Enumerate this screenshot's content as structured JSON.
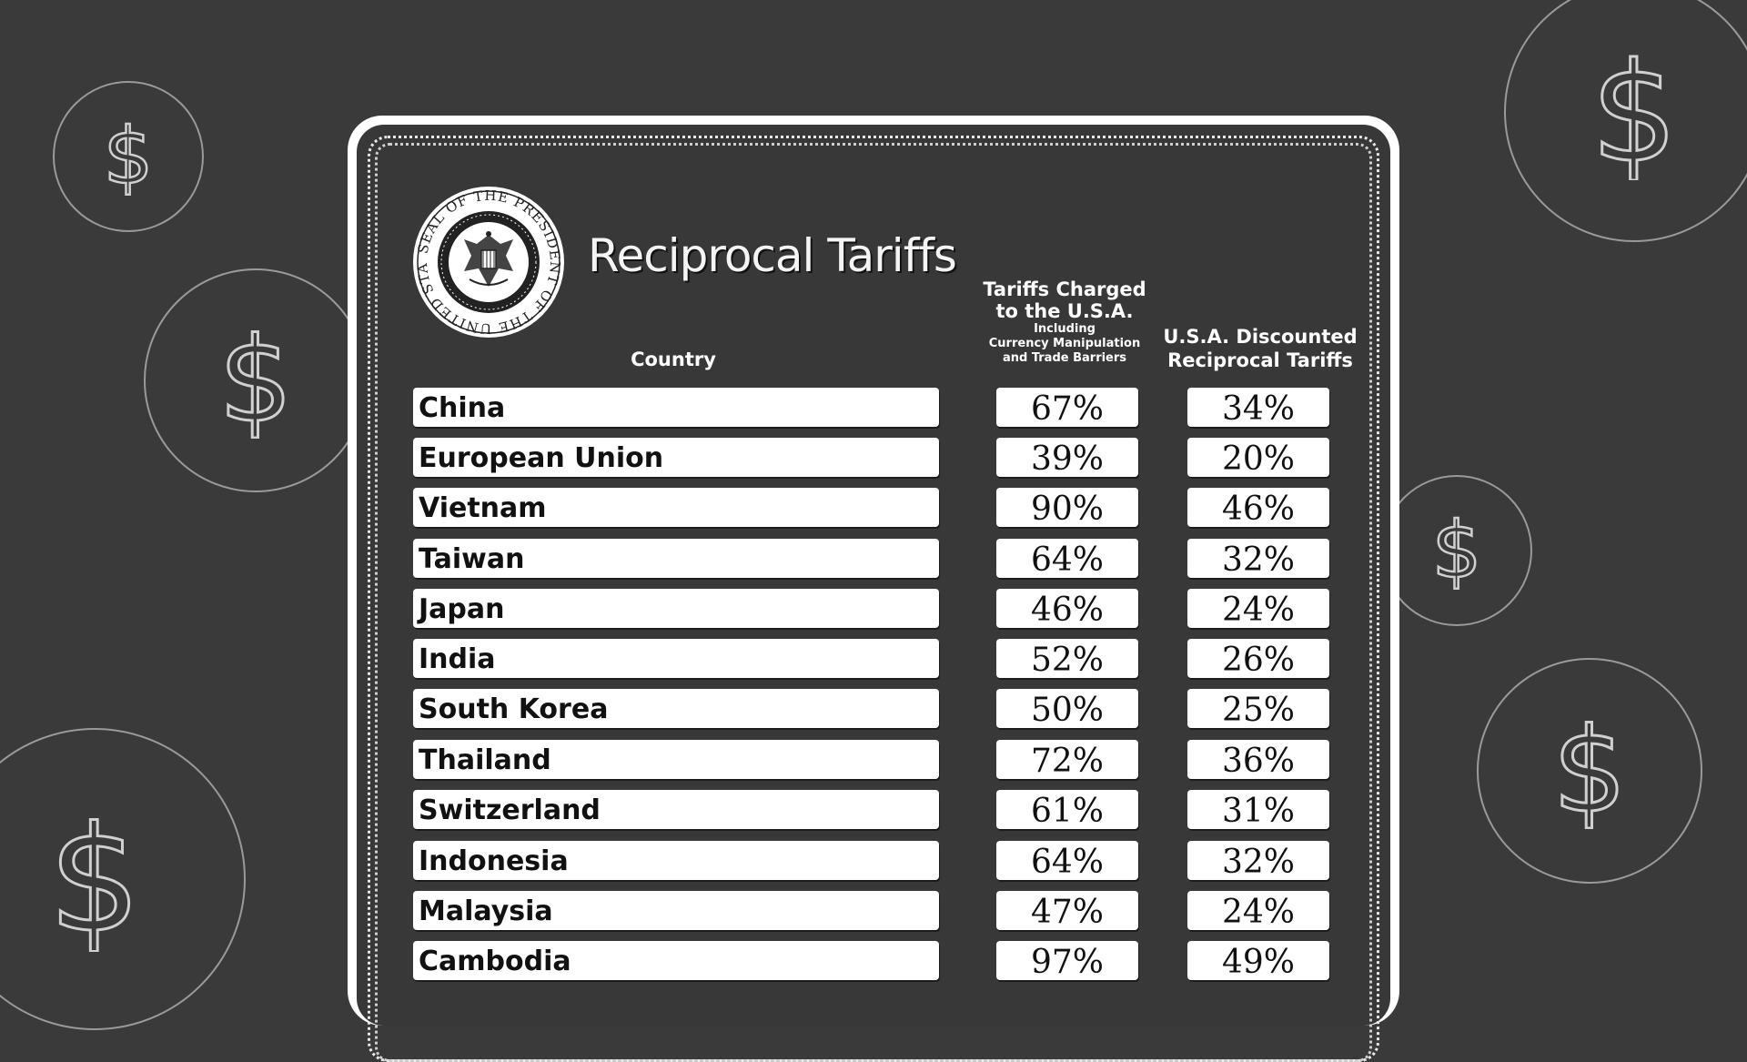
{
  "title": "Reciprocal Tariffs",
  "seal": {
    "text": "SEAL OF THE PRESIDENT OF THE UNITED STATES"
  },
  "headers": {
    "country": "Country",
    "charged_line1": "Tariffs Charged",
    "charged_line2": "to the U.S.A.",
    "charged_sub1": "Including",
    "charged_sub2": "Currency Manipulation",
    "charged_sub3": "and Trade Barriers",
    "discounted_line1": "U.S.A. Discounted",
    "discounted_line2": "Reciprocal Tariffs"
  },
  "rows": [
    {
      "country": "China",
      "charged": "67%",
      "discounted": "34%"
    },
    {
      "country": "European Union",
      "charged": "39%",
      "discounted": "20%"
    },
    {
      "country": "Vietnam",
      "charged": "90%",
      "discounted": "46%"
    },
    {
      "country": "Taiwan",
      "charged": "64%",
      "discounted": "32%"
    },
    {
      "country": "Japan",
      "charged": "46%",
      "discounted": "24%"
    },
    {
      "country": "India",
      "charged": "52%",
      "discounted": "26%"
    },
    {
      "country": "South Korea",
      "charged": "50%",
      "discounted": "25%"
    },
    {
      "country": "Thailand",
      "charged": "72%",
      "discounted": "36%"
    },
    {
      "country": "Switzerland",
      "charged": "61%",
      "discounted": "31%"
    },
    {
      "country": "Indonesia",
      "charged": "64%",
      "discounted": "32%"
    },
    {
      "country": "Malaysia",
      "charged": "47%",
      "discounted": "24%"
    },
    {
      "country": "Cambodia",
      "charged": "97%",
      "discounted": "49%"
    }
  ],
  "decor": {
    "coin_icon": "dollar-sign-icon",
    "coin_glyph": "$"
  }
}
